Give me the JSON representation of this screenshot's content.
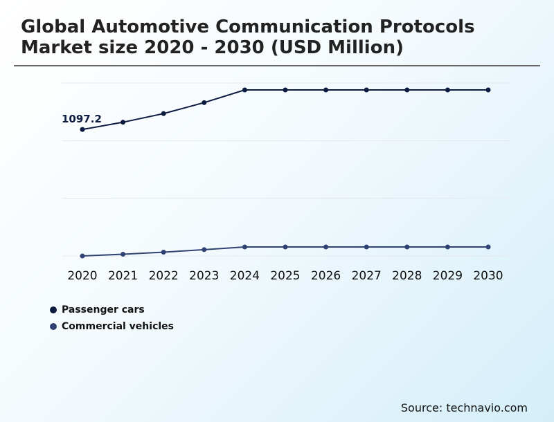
{
  "chart_data": {
    "type": "line",
    "title": "Global Automotive Communication Protocols Market size 2020 - 2030 (USD Million)",
    "categories": [
      "2020",
      "2021",
      "2022",
      "2023",
      "2024",
      "2025",
      "2026",
      "2027",
      "2028",
      "2029",
      "2030"
    ],
    "series": [
      {
        "name": "Passenger cars",
        "color": "#0b1a3f",
        "values": [
          1097.2,
          1160,
          1235,
          1330,
          1440,
          1440,
          1440,
          1440,
          1440,
          1440,
          1440
        ]
      },
      {
        "name": "Commercial vehicles",
        "color": "#2f4272",
        "values": [
          0,
          15,
          33,
          55,
          78,
          78,
          78,
          78,
          78,
          78,
          78
        ]
      }
    ],
    "annotations": [
      {
        "series": 0,
        "index": 0,
        "text": "1097.2"
      }
    ],
    "ylim": [
      0,
      1500
    ],
    "grid": true,
    "legend": "bottom-left"
  },
  "source": "Source: technavio.com"
}
